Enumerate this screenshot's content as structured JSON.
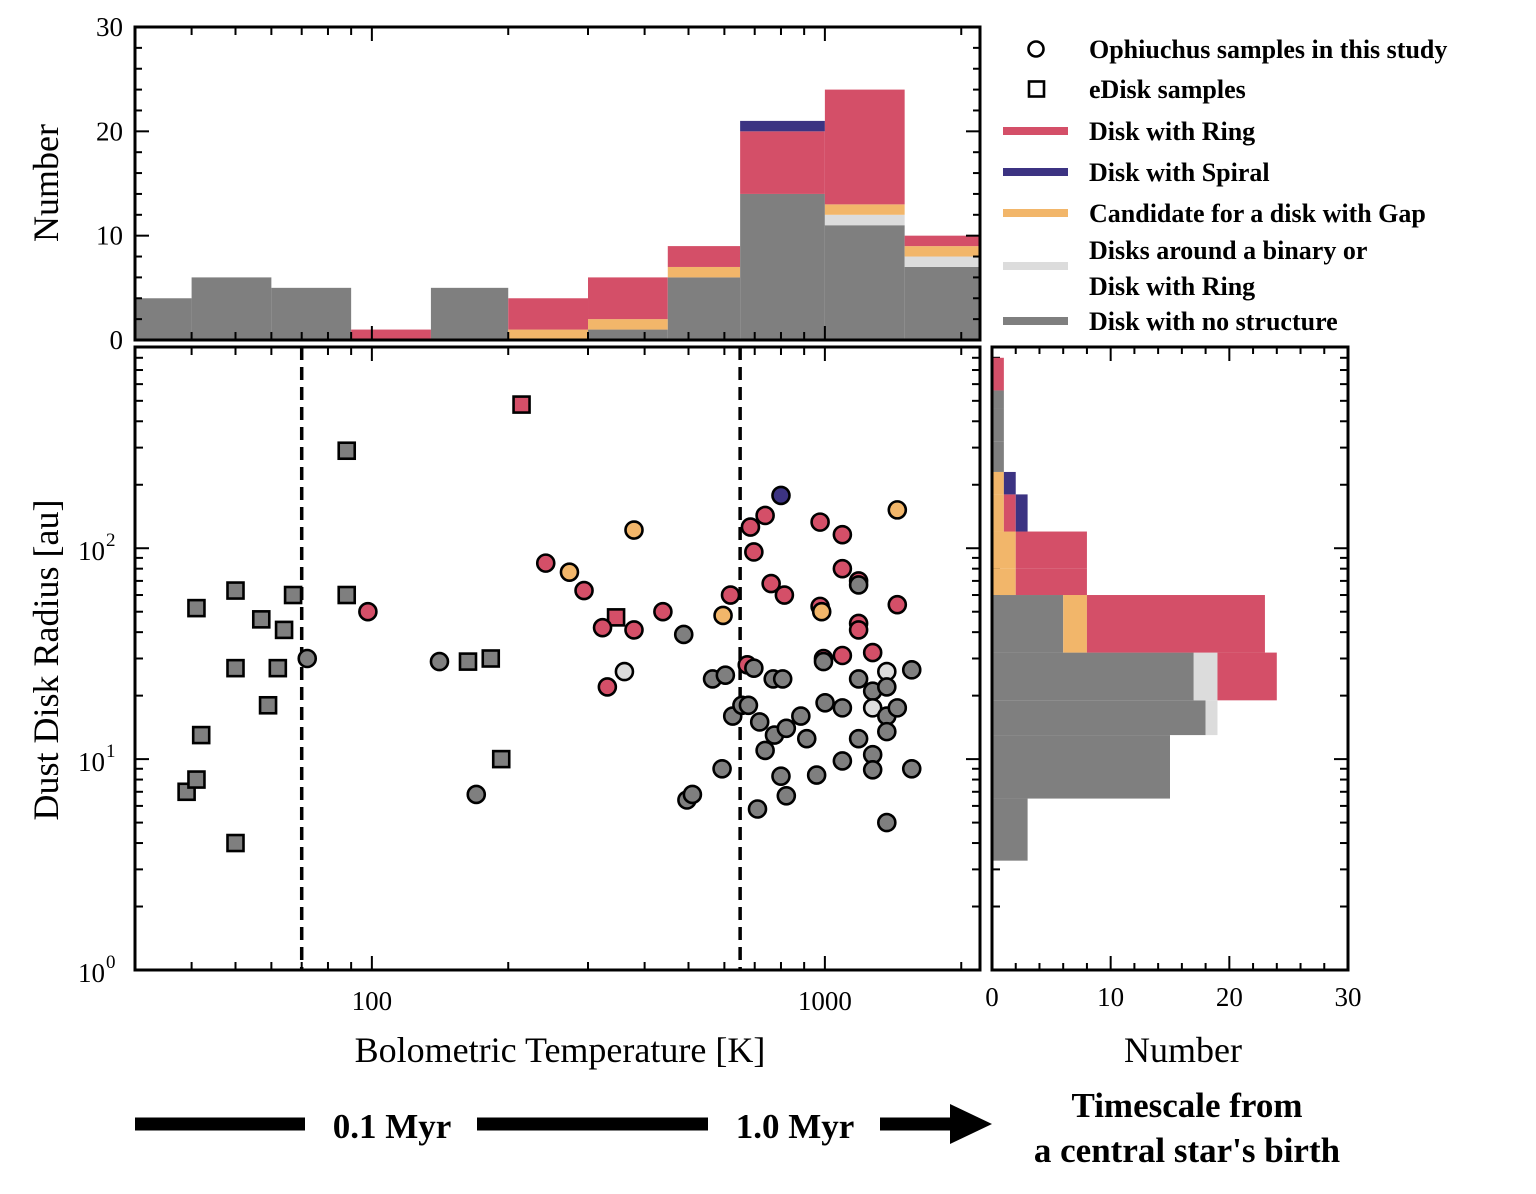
{
  "colors": {
    "ring": "#d44f68",
    "spiral": "#3c3382",
    "gap": "#f2b66a",
    "binary": "#dcdcdc",
    "none": "#7f7f7f",
    "edge": "#000000",
    "open_marker": "#ffffff"
  },
  "legend": {
    "items": [
      {
        "marker": "circle",
        "color": "#ffffff",
        "label": "Ophiuchus samples in this study"
      },
      {
        "marker": "square",
        "color": "#ffffff",
        "label": "eDisk samples"
      },
      {
        "marker": "line",
        "color": "#d44f68",
        "label": "Disk with Ring"
      },
      {
        "marker": "line",
        "color": "#3c3382",
        "label": "Disk with Spiral"
      },
      {
        "marker": "line",
        "color": "#f2b66a",
        "label": "Candidate for a disk with Gap"
      },
      {
        "marker": "line",
        "color": "#dcdcdc",
        "label": "Disks around a binary or",
        "label2": "Disk with Ring"
      },
      {
        "marker": "line",
        "color": "#7f7f7f",
        "label": "Disk with no structure"
      }
    ]
  },
  "timeline": {
    "label_a": "0.1 Myr",
    "label_b": "1.0 Myr",
    "caption_1": "Timescale from",
    "caption_2": "a central star's birth"
  },
  "chart_data": [
    {
      "id": "top_histogram",
      "type": "bar",
      "stacked": true,
      "ylabel": "Number",
      "ylim": [
        0,
        30
      ],
      "yticks": [
        "0",
        "10",
        "20",
        "30"
      ],
      "x_log": true,
      "bin_edges": [
        25,
        40,
        60,
        90,
        135,
        200,
        300,
        450,
        650,
        1000,
        1500,
        2200
      ],
      "series": [
        {
          "key": "none",
          "values": [
            4,
            6,
            5,
            0,
            5,
            0,
            1,
            6,
            14,
            11,
            7
          ]
        },
        {
          "key": "binary",
          "values": [
            0,
            0,
            0,
            0,
            0,
            0,
            0,
            0,
            0,
            1,
            1
          ]
        },
        {
          "key": "gap",
          "values": [
            0,
            0,
            0,
            0,
            0,
            1,
            1,
            1,
            0,
            1,
            1
          ]
        },
        {
          "key": "ring",
          "values": [
            0,
            0,
            0,
            1,
            0,
            3,
            4,
            2,
            6,
            11,
            1
          ]
        },
        {
          "key": "spiral",
          "values": [
            0,
            0,
            0,
            0,
            0,
            0,
            0,
            0,
            1,
            0,
            0
          ]
        }
      ]
    },
    {
      "id": "main_scatter",
      "type": "scatter",
      "xlabel": "Bolometric Temperature [K]",
      "ylabel": "Dust Disk Radius [au]",
      "x_log": true,
      "y_log": true,
      "xlim": [
        30,
        2200
      ],
      "ylim": [
        1,
        900
      ],
      "xticks": [
        "100",
        "1000"
      ],
      "yticks": [
        {
          "base": "10",
          "exp": "0"
        },
        {
          "base": "10",
          "exp": "1"
        },
        {
          "base": "10",
          "exp": "2"
        }
      ],
      "vlines": [
        70,
        650
      ],
      "points": [
        {
          "x": 39,
          "y": 7,
          "m": "s",
          "c": "none"
        },
        {
          "x": 41,
          "y": 8,
          "m": "s",
          "c": "none"
        },
        {
          "x": 41,
          "y": 52,
          "m": "s",
          "c": "none"
        },
        {
          "x": 42,
          "y": 13,
          "m": "s",
          "c": "none"
        },
        {
          "x": 50,
          "y": 63,
          "m": "s",
          "c": "none"
        },
        {
          "x": 50,
          "y": 27,
          "m": "s",
          "c": "none"
        },
        {
          "x": 50,
          "y": 4,
          "m": "s",
          "c": "none"
        },
        {
          "x": 57,
          "y": 46,
          "m": "s",
          "c": "none"
        },
        {
          "x": 59,
          "y": 18,
          "m": "s",
          "c": "none"
        },
        {
          "x": 62,
          "y": 27,
          "m": "s",
          "c": "none"
        },
        {
          "x": 64,
          "y": 41,
          "m": "s",
          "c": "none"
        },
        {
          "x": 67,
          "y": 60,
          "m": "s",
          "c": "none"
        },
        {
          "x": 88,
          "y": 290,
          "m": "s",
          "c": "none"
        },
        {
          "x": 88,
          "y": 60,
          "m": "s",
          "c": "none"
        },
        {
          "x": 163,
          "y": 29,
          "m": "s",
          "c": "none"
        },
        {
          "x": 183,
          "y": 30,
          "m": "s",
          "c": "none"
        },
        {
          "x": 193,
          "y": 10,
          "m": "s",
          "c": "none"
        },
        {
          "x": 214,
          "y": 480,
          "m": "s",
          "c": "ring"
        },
        {
          "x": 346,
          "y": 47,
          "m": "s",
          "c": "ring"
        },
        {
          "x": 72,
          "y": 30,
          "m": "o",
          "c": "none"
        },
        {
          "x": 98,
          "y": 50,
          "m": "o",
          "c": "ring"
        },
        {
          "x": 141,
          "y": 29,
          "m": "o",
          "c": "none"
        },
        {
          "x": 170,
          "y": 6.8,
          "m": "o",
          "c": "none"
        },
        {
          "x": 242,
          "y": 85,
          "m": "o",
          "c": "ring"
        },
        {
          "x": 273,
          "y": 77,
          "m": "o",
          "c": "gap"
        },
        {
          "x": 294,
          "y": 63,
          "m": "o",
          "c": "ring"
        },
        {
          "x": 323,
          "y": 42,
          "m": "o",
          "c": "ring"
        },
        {
          "x": 331,
          "y": 22,
          "m": "o",
          "c": "ring"
        },
        {
          "x": 361,
          "y": 26,
          "m": "o",
          "c": "binary"
        },
        {
          "x": 379,
          "y": 122,
          "m": "o",
          "c": "gap"
        },
        {
          "x": 379,
          "y": 41,
          "m": "o",
          "c": "ring"
        },
        {
          "x": 439,
          "y": 50,
          "m": "o",
          "c": "ring"
        },
        {
          "x": 488,
          "y": 39,
          "m": "o",
          "c": "none"
        },
        {
          "x": 496,
          "y": 6.4,
          "m": "o",
          "c": "none"
        },
        {
          "x": 510,
          "y": 6.8,
          "m": "o",
          "c": "none"
        },
        {
          "x": 565,
          "y": 24,
          "m": "o",
          "c": "none"
        },
        {
          "x": 593,
          "y": 9,
          "m": "o",
          "c": "none"
        },
        {
          "x": 603,
          "y": 25,
          "m": "o",
          "c": "none"
        },
        {
          "x": 596,
          "y": 48,
          "m": "o",
          "c": "gap"
        },
        {
          "x": 619,
          "y": 60,
          "m": "o",
          "c": "ring"
        },
        {
          "x": 626,
          "y": 16,
          "m": "o",
          "c": "none"
        },
        {
          "x": 656,
          "y": 18,
          "m": "o",
          "c": "none"
        },
        {
          "x": 674,
          "y": 28,
          "m": "o",
          "c": "ring"
        },
        {
          "x": 678,
          "y": 18,
          "m": "o",
          "c": "none"
        },
        {
          "x": 685,
          "y": 126,
          "m": "o",
          "c": "ring"
        },
        {
          "x": 697,
          "y": 96,
          "m": "o",
          "c": "ring"
        },
        {
          "x": 697,
          "y": 27,
          "m": "o",
          "c": "none"
        },
        {
          "x": 710,
          "y": 5.8,
          "m": "o",
          "c": "none"
        },
        {
          "x": 718,
          "y": 15,
          "m": "o",
          "c": "none"
        },
        {
          "x": 738,
          "y": 143,
          "m": "o",
          "c": "ring"
        },
        {
          "x": 738,
          "y": 11,
          "m": "o",
          "c": "none"
        },
        {
          "x": 761,
          "y": 68,
          "m": "o",
          "c": "ring"
        },
        {
          "x": 769,
          "y": 24,
          "m": "o",
          "c": "none"
        },
        {
          "x": 774,
          "y": 13,
          "m": "o",
          "c": "none"
        },
        {
          "x": 800,
          "y": 178,
          "m": "o",
          "c": "spiral"
        },
        {
          "x": 800,
          "y": 8.3,
          "m": "o",
          "c": "none"
        },
        {
          "x": 807,
          "y": 24,
          "m": "o",
          "c": "none"
        },
        {
          "x": 814,
          "y": 60,
          "m": "o",
          "c": "ring"
        },
        {
          "x": 822,
          "y": 14,
          "m": "o",
          "c": "none"
        },
        {
          "x": 822,
          "y": 6.7,
          "m": "o",
          "c": "none"
        },
        {
          "x": 885,
          "y": 16,
          "m": "o",
          "c": "none"
        },
        {
          "x": 912,
          "y": 12.5,
          "m": "o",
          "c": "none"
        },
        {
          "x": 959,
          "y": 8.4,
          "m": "o",
          "c": "none"
        },
        {
          "x": 976,
          "y": 133,
          "m": "o",
          "c": "ring"
        },
        {
          "x": 976,
          "y": 53,
          "m": "o",
          "c": "ring"
        },
        {
          "x": 984,
          "y": 50,
          "m": "o",
          "c": "gap"
        },
        {
          "x": 993,
          "y": 30,
          "m": "o",
          "c": "ring"
        },
        {
          "x": 993,
          "y": 29,
          "m": "o",
          "c": "none"
        },
        {
          "x": 1001,
          "y": 18.5,
          "m": "o",
          "c": "none"
        },
        {
          "x": 1093,
          "y": 116,
          "m": "o",
          "c": "ring"
        },
        {
          "x": 1093,
          "y": 80,
          "m": "o",
          "c": "ring"
        },
        {
          "x": 1093,
          "y": 31,
          "m": "o",
          "c": "ring"
        },
        {
          "x": 1093,
          "y": 17.5,
          "m": "o",
          "c": "none"
        },
        {
          "x": 1093,
          "y": 9.8,
          "m": "o",
          "c": "none"
        },
        {
          "x": 1187,
          "y": 70,
          "m": "o",
          "c": "ring"
        },
        {
          "x": 1187,
          "y": 67,
          "m": "o",
          "c": "none"
        },
        {
          "x": 1187,
          "y": 44,
          "m": "o",
          "c": "ring"
        },
        {
          "x": 1187,
          "y": 41,
          "m": "o",
          "c": "ring"
        },
        {
          "x": 1187,
          "y": 24,
          "m": "o",
          "c": "none"
        },
        {
          "x": 1187,
          "y": 12.5,
          "m": "o",
          "c": "none"
        },
        {
          "x": 1275,
          "y": 32,
          "m": "o",
          "c": "ring"
        },
        {
          "x": 1275,
          "y": 21,
          "m": "o",
          "c": "none"
        },
        {
          "x": 1275,
          "y": 17.5,
          "m": "o",
          "c": "binary"
        },
        {
          "x": 1275,
          "y": 10.5,
          "m": "o",
          "c": "none"
        },
        {
          "x": 1275,
          "y": 8.9,
          "m": "o",
          "c": "none"
        },
        {
          "x": 1370,
          "y": 26,
          "m": "o",
          "c": "binary"
        },
        {
          "x": 1370,
          "y": 22,
          "m": "o",
          "c": "none"
        },
        {
          "x": 1370,
          "y": 16,
          "m": "o",
          "c": "none"
        },
        {
          "x": 1370,
          "y": 13.5,
          "m": "o",
          "c": "none"
        },
        {
          "x": 1370,
          "y": 5,
          "m": "o",
          "c": "none"
        },
        {
          "x": 1445,
          "y": 152,
          "m": "o",
          "c": "gap"
        },
        {
          "x": 1445,
          "y": 54,
          "m": "o",
          "c": "ring"
        },
        {
          "x": 1445,
          "y": 17.5,
          "m": "o",
          "c": "none"
        },
        {
          "x": 1555,
          "y": 26.5,
          "m": "o",
          "c": "none"
        },
        {
          "x": 1555,
          "y": 9,
          "m": "o",
          "c": "none"
        }
      ]
    },
    {
      "id": "right_histogram",
      "type": "bar",
      "orientation": "horizontal",
      "stacked": true,
      "xlabel": "Number",
      "xlim": [
        0,
        30
      ],
      "xticks": [
        "0",
        "10",
        "20",
        "30"
      ],
      "y_log": true,
      "bin_edges": [
        3.3,
        6.5,
        13,
        19,
        32,
        60,
        80,
        120,
        180,
        230,
        320,
        460,
        560,
        800
      ],
      "series": [
        {
          "key": "none",
          "values": [
            3,
            15,
            18,
            17,
            6,
            0,
            0,
            0,
            0,
            1,
            1,
            1,
            0
          ]
        },
        {
          "key": "binary",
          "values": [
            0,
            0,
            1,
            2,
            0,
            0,
            0,
            0,
            0,
            0,
            0,
            0,
            0
          ]
        },
        {
          "key": "gap",
          "values": [
            0,
            0,
            0,
            0,
            2,
            2,
            2,
            1,
            1,
            0,
            0,
            0,
            0
          ]
        },
        {
          "key": "ring",
          "values": [
            0,
            0,
            0,
            5,
            15,
            6,
            6,
            1,
            0,
            0,
            0,
            0,
            1
          ]
        },
        {
          "key": "spiral",
          "values": [
            0,
            0,
            0,
            0,
            0,
            0,
            0,
            1,
            1,
            0,
            0,
            0,
            0
          ]
        }
      ]
    }
  ]
}
